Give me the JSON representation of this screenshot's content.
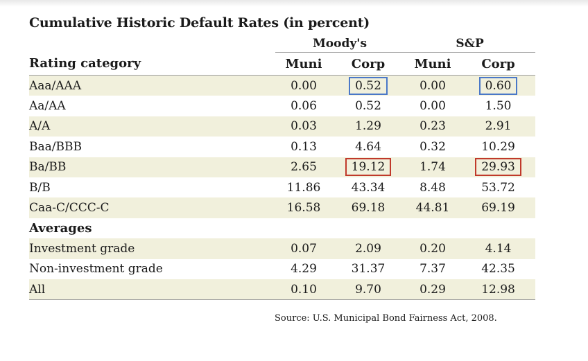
{
  "chart_data": {
    "type": "table",
    "title": "Cumulative Historic Default Rates (in percent)",
    "column_groups": [
      {
        "name": "Moody's",
        "columns": [
          "Muni",
          "Corp"
        ]
      },
      {
        "name": "S&P",
        "columns": [
          "Muni",
          "Corp"
        ]
      }
    ],
    "row_header_label": "Rating category",
    "columns": [
      "Muni",
      "Corp",
      "Muni",
      "Corp"
    ],
    "rows": [
      {
        "label": "Aaa/AAA",
        "values": [
          "0.00",
          "0.52",
          "0.00",
          "0.60"
        ],
        "highlight": [
          null,
          "#4a78c8",
          null,
          "#4a78c8"
        ]
      },
      {
        "label": "Aa/AA",
        "values": [
          "0.06",
          "0.52",
          "0.00",
          "1.50"
        ],
        "highlight": [
          null,
          null,
          null,
          null
        ]
      },
      {
        "label": "A/A",
        "values": [
          "0.03",
          "1.29",
          "0.23",
          "2.91"
        ],
        "highlight": [
          null,
          null,
          null,
          null
        ]
      },
      {
        "label": "Baa/BBB",
        "values": [
          "0.13",
          "4.64",
          "0.32",
          "10.29"
        ],
        "highlight": [
          null,
          null,
          null,
          null
        ]
      },
      {
        "label": "Ba/BB",
        "values": [
          "2.65",
          "19.12",
          "1.74",
          "29.93"
        ],
        "highlight": [
          null,
          "#c0392b",
          null,
          "#c0392b"
        ]
      },
      {
        "label": "B/B",
        "values": [
          "11.86",
          "43.34",
          "8.48",
          "53.72"
        ],
        "highlight": [
          null,
          null,
          null,
          null
        ]
      },
      {
        "label": "Caa-C/CCC-C",
        "values": [
          "16.58",
          "69.18",
          "44.81",
          "69.19"
        ],
        "highlight": [
          null,
          null,
          null,
          null
        ]
      }
    ],
    "section_label": "Averages",
    "average_rows": [
      {
        "label": "Investment grade",
        "values": [
          "0.07",
          "2.09",
          "0.20",
          "4.14"
        ]
      },
      {
        "label": "Non-investment grade",
        "values": [
          "4.29",
          "31.37",
          "7.37",
          "42.35"
        ]
      },
      {
        "label": "All",
        "values": [
          "0.10",
          "9.70",
          "0.29",
          "12.98"
        ]
      }
    ],
    "source": "Source: U.S. Municipal Bond Fairness Act, 2008.",
    "row_shade_color": "#f1f0dc",
    "highlight_colors": {
      "blue": "#4a78c8",
      "red": "#c0392b"
    }
  }
}
